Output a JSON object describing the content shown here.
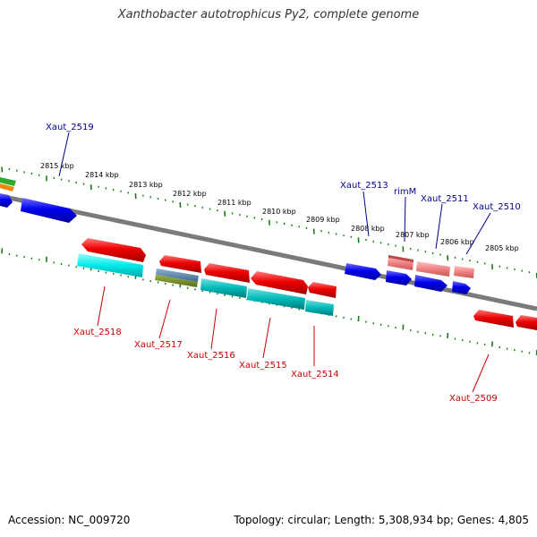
{
  "title": "Xanthobacter autotrophicus Py2, complete genome",
  "footer": {
    "accession": "Accession: NC_009720",
    "summary": "Topology: circular; Length: 5,308,934 bp; Genes: 4,805"
  },
  "colors": {
    "backbone": "#7a7a7a",
    "tick": "#1a7a1a",
    "forward_label": "#00008b",
    "reverse_label": "#cc0000",
    "blue_gene": "#0000ee",
    "pink_gene": "#f08080",
    "red_gene": "#ee0000",
    "cyan_gene": "#00dddd",
    "teal_gene": "#00b8b8"
  },
  "scale_labels": [
    "2815 kbp",
    "2814 kbp",
    "2813 kbp",
    "2812 kbp",
    "2811 kbp",
    "2810 kbp",
    "2809 kbp",
    "2808 kbp",
    "2807 kbp",
    "2806 kbp",
    "2805 kbp"
  ],
  "forward_gene_labels": [
    "Xaut_2519",
    "Xaut_2513",
    "rimM",
    "Xaut_2511",
    "Xaut_2510"
  ],
  "reverse_gene_labels": [
    "Xaut_2518",
    "Xaut_2517",
    "Xaut_2516",
    "Xaut_2515",
    "Xaut_2514",
    "Xaut_2509"
  ]
}
